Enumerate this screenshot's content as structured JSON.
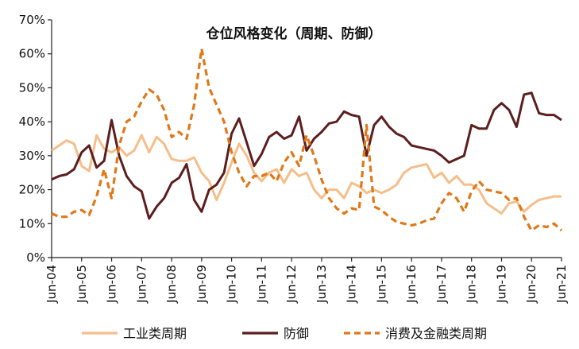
{
  "chart_data": {
    "type": "line",
    "title": "仓位风格变化（周期、防御）",
    "xlabel": "",
    "ylabel": "",
    "ylim": [
      0,
      70
    ],
    "y_ticks": [
      "0%",
      "10%",
      "20%",
      "30%",
      "40%",
      "50%",
      "60%",
      "70%"
    ],
    "x_ticks": [
      "Jun-04",
      "Jun-05",
      "Jun-06",
      "Jun-07",
      "Jun-08",
      "Jun-09",
      "Jun-10",
      "Jun-11",
      "Jun-12",
      "Jun-13",
      "Jun-14",
      "Jun-15",
      "Jun-16",
      "Jun-17",
      "Jun-18",
      "Jun-19",
      "Jun-20",
      "Jun-21"
    ],
    "x_range": [
      2004.5,
      2021.5
    ],
    "grid": false,
    "legend_position": "bottom",
    "series": [
      {
        "name": "工业类周期",
        "color": "#F5BE8A",
        "style": "solid",
        "x": [
          2004.5,
          2004.75,
          2005.0,
          2005.25,
          2005.5,
          2005.75,
          2006.0,
          2006.25,
          2006.5,
          2006.75,
          2007.0,
          2007.25,
          2007.5,
          2007.75,
          2008.0,
          2008.25,
          2008.5,
          2008.75,
          2009.0,
          2009.25,
          2009.5,
          2009.75,
          2010.0,
          2010.25,
          2010.5,
          2010.75,
          2011.0,
          2011.25,
          2011.5,
          2011.75,
          2012.0,
          2012.25,
          2012.5,
          2012.75,
          2013.0,
          2013.25,
          2013.5,
          2013.75,
          2014.0,
          2014.25,
          2014.5,
          2014.75,
          2015.0,
          2015.25,
          2015.5,
          2015.75,
          2016.0,
          2016.25,
          2016.5,
          2016.75,
          2017.0,
          2017.25,
          2017.5,
          2017.75,
          2018.0,
          2018.25,
          2018.5,
          2018.75,
          2019.0,
          2019.25,
          2019.5,
          2019.75,
          2020.0,
          2020.25,
          2020.5,
          2020.75,
          2021.0,
          2021.25,
          2021.5
        ],
        "values": [
          31.5,
          33,
          34.5,
          33.5,
          27,
          25.5,
          36,
          32,
          31,
          32.5,
          30,
          31.5,
          36,
          31,
          35.5,
          33.5,
          29,
          28.5,
          28.5,
          29.5,
          25,
          22.5,
          17,
          22,
          28,
          33.5,
          30,
          25,
          22.5,
          25,
          26,
          22,
          26,
          24,
          25,
          20,
          17.5,
          20,
          20,
          17.5,
          22,
          21,
          19,
          20,
          19,
          20,
          21.5,
          25,
          26.5,
          27,
          27.5,
          23.5,
          25,
          22,
          24,
          21.5,
          21.5,
          20,
          16,
          14.5,
          13,
          16,
          16.5,
          13.5,
          15.5,
          17,
          17.5,
          18,
          18
        ]
      },
      {
        "name": "防御",
        "color": "#5C1E1E",
        "style": "solid",
        "x": [
          2004.5,
          2004.75,
          2005.0,
          2005.25,
          2005.5,
          2005.75,
          2006.0,
          2006.25,
          2006.5,
          2006.75,
          2007.0,
          2007.25,
          2007.5,
          2007.75,
          2008.0,
          2008.25,
          2008.5,
          2008.75,
          2009.0,
          2009.25,
          2009.5,
          2009.75,
          2010.0,
          2010.25,
          2010.5,
          2010.75,
          2011.0,
          2011.25,
          2011.5,
          2011.75,
          2012.0,
          2012.25,
          2012.5,
          2012.75,
          2013.0,
          2013.25,
          2013.5,
          2013.75,
          2014.0,
          2014.25,
          2014.5,
          2014.75,
          2015.0,
          2015.25,
          2015.5,
          2015.75,
          2016.0,
          2016.25,
          2016.5,
          2016.75,
          2017.0,
          2017.25,
          2017.5,
          2017.75,
          2018.0,
          2018.25,
          2018.5,
          2018.75,
          2019.0,
          2019.25,
          2019.5,
          2019.75,
          2020.0,
          2020.25,
          2020.5,
          2020.75,
          2021.0,
          2021.25,
          2021.5
        ],
        "values": [
          23,
          24,
          24.5,
          26,
          31,
          33,
          26.5,
          28.5,
          40.5,
          30,
          24,
          21,
          19.5,
          11.5,
          15,
          17.5,
          22,
          23.5,
          27.5,
          17,
          13.5,
          20,
          21.5,
          25,
          36.5,
          41,
          34,
          27,
          30.5,
          35.5,
          37,
          35,
          36,
          41.5,
          31.5,
          35,
          37,
          39.5,
          40,
          43,
          42,
          41.5,
          30,
          39,
          41.5,
          38.5,
          36.5,
          35.5,
          33,
          32.5,
          32,
          31.5,
          30,
          28,
          29,
          30,
          39,
          38,
          38,
          43.5,
          45.5,
          43.5,
          38.5,
          48,
          48.5,
          42.5,
          42,
          42,
          40.5
        ]
      },
      {
        "name": "消费及金融类周期",
        "color": "#E07818",
        "style": "dashed",
        "x": [
          2004.5,
          2004.75,
          2005.0,
          2005.25,
          2005.5,
          2005.75,
          2006.0,
          2006.25,
          2006.5,
          2006.75,
          2007.0,
          2007.25,
          2007.5,
          2007.75,
          2008.0,
          2008.25,
          2008.5,
          2008.75,
          2009.0,
          2009.25,
          2009.5,
          2009.75,
          2010.0,
          2010.25,
          2010.5,
          2010.75,
          2011.0,
          2011.25,
          2011.5,
          2011.75,
          2012.0,
          2012.25,
          2012.5,
          2012.75,
          2013.0,
          2013.25,
          2013.5,
          2013.75,
          2014.0,
          2014.25,
          2014.5,
          2014.75,
          2015.0,
          2015.25,
          2015.5,
          2015.75,
          2016.0,
          2016.25,
          2016.5,
          2016.75,
          2017.0,
          2017.25,
          2017.5,
          2017.75,
          2018.0,
          2018.25,
          2018.5,
          2018.75,
          2019.0,
          2019.25,
          2019.5,
          2019.75,
          2020.0,
          2020.25,
          2020.5,
          2020.75,
          2021.0,
          2021.25,
          2021.5
        ],
        "values": [
          13,
          12,
          12,
          13.5,
          14,
          12.5,
          18,
          26,
          17.5,
          33,
          40,
          41.5,
          46,
          49.5,
          48,
          43.5,
          35.5,
          37,
          35,
          45,
          61.5,
          50,
          45,
          40,
          31,
          25,
          21,
          24,
          24,
          25,
          22.5,
          28,
          31,
          27,
          36,
          30,
          23,
          17.5,
          14.5,
          13,
          14.5,
          14,
          39,
          15,
          14,
          12,
          10.5,
          10,
          9.5,
          10,
          11,
          11.5,
          16,
          19,
          17.5,
          13.5,
          19.5,
          22.5,
          20,
          19.5,
          19,
          17,
          17.5,
          12,
          8,
          9.5,
          9,
          10,
          8
        ]
      }
    ]
  }
}
